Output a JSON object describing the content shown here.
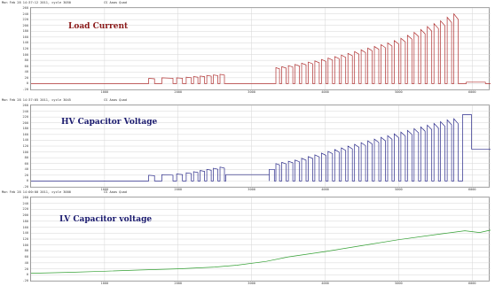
{
  "chart_data": [
    {
      "type": "line",
      "header": "Mon Feb 28 14:37:12 2011, cycle 3050",
      "scope": "CS Aaas Quad",
      "title": "Load Current",
      "title_color": "#8b1a1a",
      "line_color": "#b03030",
      "xlim": [
        0,
        6250
      ],
      "ylim": [
        -20,
        260
      ],
      "xticks": [
        "1000",
        "2000",
        "3000",
        "4000",
        "5000",
        "6000"
      ],
      "yticks": [
        "-20",
        "0",
        "20",
        "40",
        "60",
        "80",
        "100",
        "120",
        "140",
        "160",
        "180",
        "200",
        "220",
        "240",
        "260"
      ],
      "xtick_values": [
        1000,
        2000,
        3000,
        4000,
        5000,
        6000
      ],
      "ytick_values": [
        -20,
        0,
        20,
        40,
        60,
        80,
        100,
        120,
        140,
        160,
        180,
        200,
        220,
        240,
        260
      ],
      "grid": true,
      "pulses": [
        [
          1600,
          1680,
          18
        ],
        [
          1780,
          1930,
          20
        ],
        [
          1980,
          2060,
          20
        ],
        [
          2110,
          2180,
          22
        ],
        [
          2210,
          2270,
          24
        ],
        [
          2300,
          2360,
          26
        ],
        [
          2390,
          2450,
          28
        ],
        [
          2480,
          2540,
          30
        ],
        [
          2570,
          2630,
          32
        ],
        [
          3330,
          3380,
          55
        ],
        [
          3410,
          3470,
          58
        ],
        [
          3500,
          3560,
          62
        ],
        [
          3590,
          3650,
          66
        ],
        [
          3680,
          3740,
          70
        ],
        [
          3770,
          3830,
          74
        ],
        [
          3860,
          3920,
          78
        ],
        [
          3950,
          4010,
          83
        ],
        [
          4040,
          4100,
          88
        ],
        [
          4130,
          4190,
          93
        ],
        [
          4220,
          4280,
          98
        ],
        [
          4310,
          4370,
          104
        ],
        [
          4400,
          4460,
          110
        ],
        [
          4490,
          4550,
          116
        ],
        [
          4580,
          4640,
          122
        ],
        [
          4670,
          4730,
          128
        ],
        [
          4760,
          4820,
          134
        ],
        [
          4850,
          4910,
          140
        ],
        [
          4940,
          5000,
          148
        ],
        [
          5030,
          5090,
          156
        ],
        [
          5120,
          5180,
          166
        ],
        [
          5210,
          5270,
          176
        ],
        [
          5300,
          5360,
          186
        ],
        [
          5390,
          5450,
          196
        ],
        [
          5480,
          5540,
          206
        ],
        [
          5570,
          5630,
          216
        ],
        [
          5660,
          5720,
          228
        ],
        [
          5750,
          5810,
          240
        ]
      ],
      "tail_pulse": [
        5920,
        6180,
        5
      ],
      "baseline": 0
    },
    {
      "type": "line",
      "header": "Mon Feb 28 14:37:05 2011, cycle 3045",
      "scope": "CS Aaas Quad",
      "title": "HV Capacitor Voltage",
      "title_color": "#1a1a6e",
      "line_color": "#2a2a8a",
      "xlim": [
        0,
        6250
      ],
      "ylim": [
        -20,
        260
      ],
      "xticks": [
        "1000",
        "2000",
        "3000",
        "4000",
        "5000",
        "6000"
      ],
      "yticks": [
        "-20",
        "0",
        "20",
        "40",
        "60",
        "80",
        "100",
        "120",
        "140",
        "160",
        "180",
        "200",
        "220",
        "240",
        "260"
      ],
      "xtick_values": [
        1000,
        2000,
        3000,
        4000,
        5000,
        6000
      ],
      "ytick_values": [
        -20,
        0,
        20,
        40,
        60,
        80,
        100,
        120,
        140,
        160,
        180,
        200,
        220,
        240,
        260
      ],
      "grid": true,
      "pulses": [
        [
          1600,
          1680,
          20
        ],
        [
          1780,
          1930,
          22
        ],
        [
          1980,
          2060,
          24
        ],
        [
          2110,
          2180,
          28
        ],
        [
          2210,
          2270,
          32
        ],
        [
          2300,
          2360,
          36
        ],
        [
          2390,
          2450,
          40
        ],
        [
          2480,
          2540,
          44
        ],
        [
          2570,
          2630,
          48
        ],
        [
          3330,
          3380,
          60
        ],
        [
          3410,
          3470,
          64
        ],
        [
          3500,
          3560,
          68
        ],
        [
          3590,
          3650,
          72
        ],
        [
          3680,
          3740,
          78
        ],
        [
          3770,
          3830,
          84
        ],
        [
          3860,
          3920,
          90
        ],
        [
          3950,
          4010,
          96
        ],
        [
          4040,
          4100,
          102
        ],
        [
          4130,
          4190,
          108
        ],
        [
          4220,
          4280,
          114
        ],
        [
          4310,
          4370,
          120
        ],
        [
          4400,
          4460,
          126
        ],
        [
          4490,
          4550,
          132
        ],
        [
          4580,
          4640,
          138
        ],
        [
          4670,
          4730,
          144
        ],
        [
          4760,
          4820,
          150
        ],
        [
          4850,
          4910,
          156
        ],
        [
          4940,
          5000,
          162
        ],
        [
          5030,
          5090,
          168
        ],
        [
          5120,
          5180,
          174
        ],
        [
          5210,
          5270,
          180
        ],
        [
          5300,
          5360,
          186
        ],
        [
          5390,
          5450,
          192
        ],
        [
          5480,
          5540,
          198
        ],
        [
          5570,
          5630,
          204
        ],
        [
          5660,
          5720,
          210
        ],
        [
          5750,
          5810,
          214
        ]
      ],
      "steps": [
        [
          2650,
          3240,
          22
        ],
        [
          3240,
          3310,
          40
        ]
      ],
      "final_plateau": [
        5870,
        5990,
        228
      ],
      "final_tail": [
        5990,
        6250,
        110
      ],
      "baseline": 0
    },
    {
      "type": "line",
      "header": "Mon Feb 28 14:00:00 2011, cycle 3000",
      "scope": "CS Aaas Quad",
      "title": "LV Capacitor voltage",
      "title_color": "#1a1a6e",
      "line_color": "#33a033",
      "xlim": [
        0,
        6250
      ],
      "ylim": [
        -20,
        260
      ],
      "xticks": [
        "1000",
        "2000",
        "3000",
        "4000",
        "5000",
        "6000"
      ],
      "yticks": [
        "-20",
        "0",
        "20",
        "40",
        "60",
        "80",
        "100",
        "120",
        "140",
        "160",
        "180",
        "200",
        "220",
        "240",
        "260"
      ],
      "xtick_values": [
        1000,
        2000,
        3000,
        4000,
        5000,
        6000
      ],
      "ytick_values": [
        -20,
        0,
        20,
        40,
        60,
        80,
        100,
        120,
        140,
        160,
        180,
        200,
        220,
        240,
        260
      ],
      "grid": true,
      "x": [
        0,
        500,
        1000,
        1500,
        2000,
        2500,
        2800,
        3200,
        3500,
        4000,
        4500,
        5000,
        5500,
        5900,
        6100,
        6250
      ],
      "y": [
        5,
        8,
        12,
        16,
        20,
        26,
        32,
        45,
        60,
        78,
        98,
        118,
        135,
        148,
        142,
        150
      ]
    }
  ]
}
